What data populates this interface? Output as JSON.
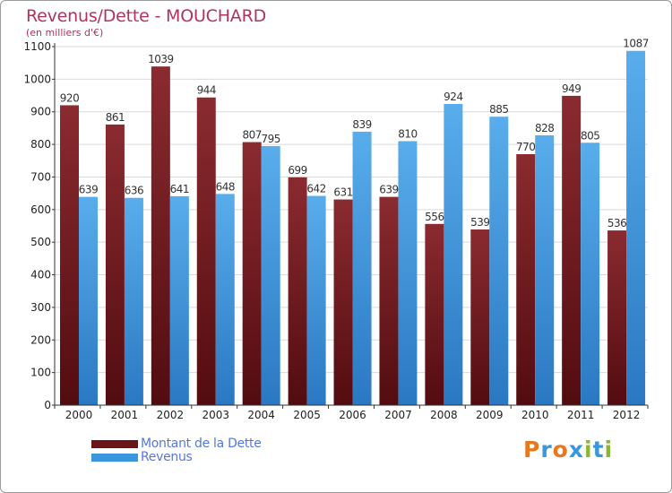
{
  "chart_data": {
    "type": "bar",
    "title": "Revenus/Dette - MOUCHARD",
    "subtitle": "(en milliers d'€)",
    "categories": [
      "2000",
      "2001",
      "2002",
      "2003",
      "2004",
      "2005",
      "2006",
      "2007",
      "2008",
      "2009",
      "2010",
      "2011",
      "2012"
    ],
    "series": [
      {
        "name": "Montant de la Dette",
        "color": "#7a1e24",
        "values": [
          920,
          861,
          1039,
          944,
          807,
          699,
          631,
          639,
          556,
          539,
          770,
          949,
          536
        ]
      },
      {
        "name": "Revenus",
        "color": "#3a96dd",
        "values": [
          639,
          636,
          641,
          648,
          795,
          642,
          839,
          810,
          924,
          885,
          828,
          805,
          1087
        ]
      }
    ],
    "ylim": [
      0,
      1100
    ],
    "yticks": [
      0,
      100,
      200,
      300,
      400,
      500,
      600,
      700,
      800,
      900,
      1000,
      1100
    ],
    "grid": true,
    "legend_position": "bottom-left"
  },
  "logo": {
    "text": "Proxiti",
    "letters": [
      {
        "ch": "P",
        "color": "#e8781e"
      },
      {
        "ch": "r",
        "color": "#3a96dd"
      },
      {
        "ch": "o",
        "color": "#e8781e"
      },
      {
        "ch": "x",
        "color": "#3a96dd"
      },
      {
        "ch": "i",
        "color": "#8ab833"
      },
      {
        "ch": "t",
        "color": "#3a96dd"
      },
      {
        "ch": "i",
        "color": "#8ab833"
      }
    ]
  }
}
